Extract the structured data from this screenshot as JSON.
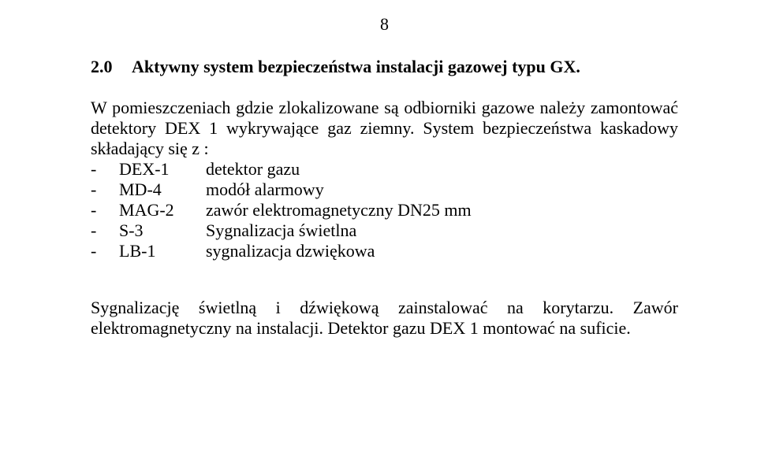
{
  "page_number": "8",
  "heading": {
    "number": "2.0",
    "title": "Aktywny system bezpieczeństwa instalacji gazowej typu GX."
  },
  "intro_text": "W pomieszczeniach gdzie zlokalizowane są odbiorniki gazowe należy zamontować detektory DEX 1 wykrywające gaz ziemny. System bezpieczeństwa kaskadowy składający się z :",
  "list": [
    {
      "dash": "-",
      "code": "DEX-1",
      "desc": "detektor gazu"
    },
    {
      "dash": "-",
      "code": "MD-4",
      "desc": " modół alarmowy"
    },
    {
      "dash": "-",
      "code": "MAG-2",
      "desc": "zawór elektromagnetyczny DN25 mm"
    },
    {
      "dash": "-",
      "code": "S-3",
      "desc": "Sygnalizacja świetlna"
    },
    {
      "dash": "-",
      "code": "LB-1",
      "desc": "sygnalizacja dzwiękowa"
    }
  ],
  "closing_text": "Sygnalizację świetlną i dźwiękową zainstalować na korytarzu. Zawór elektromagnetyczny na instalacji. Detektor gazu DEX 1 montować na suficie."
}
